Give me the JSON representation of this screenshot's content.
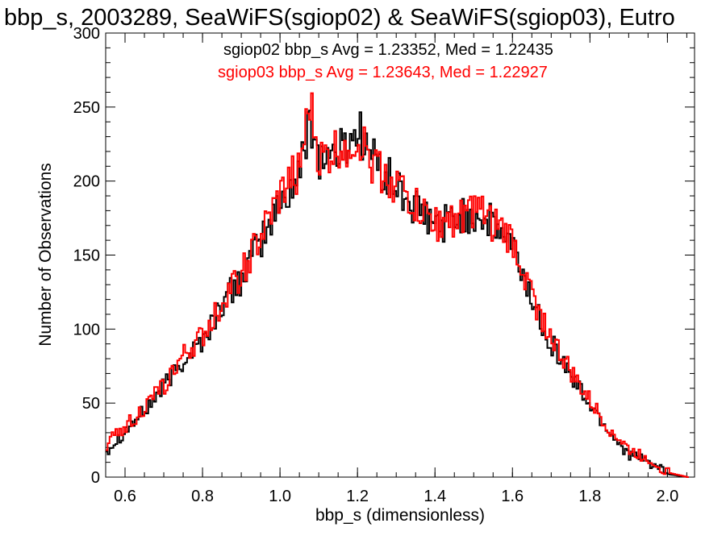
{
  "chart_data": {
    "type": "line",
    "title": "bbp_s, 2003289, SeaWiFS(sgiop02) & SeaWiFS(sgiop03), Eutro",
    "xlabel": "bbp_s (dimensionless)",
    "ylabel": "Number of Observations",
    "xlim": [
      0.55,
      2.07
    ],
    "ylim": [
      0,
      300
    ],
    "xticks": [
      "0.6",
      "0.8",
      "1.0",
      "1.2",
      "1.4",
      "1.6",
      "1.8",
      "2.0"
    ],
    "yticks": [
      "0",
      "50",
      "100",
      "150",
      "200",
      "250",
      "300"
    ],
    "annotations": [
      {
        "text": "sgiop02 bbp_s Avg = 1.23352, Med = 1.22435",
        "color": "#000000"
      },
      {
        "text": "sgiop03 bbp_s Avg = 1.23643, Med = 1.22927",
        "color": "#ff0000"
      }
    ],
    "series": [
      {
        "color": "#000000",
        "x": [
          0.55,
          0.6,
          0.65,
          0.7,
          0.75,
          0.8,
          0.85,
          0.9,
          0.95,
          1.0,
          1.05,
          1.075,
          1.1,
          1.15,
          1.2,
          1.25,
          1.3,
          1.35,
          1.4,
          1.45,
          1.5,
          1.55,
          1.6,
          1.65,
          1.7,
          1.75,
          1.8,
          1.85,
          1.9,
          1.95,
          2.0,
          2.05
        ],
        "values": [
          18,
          32,
          45,
          62,
          80,
          93,
          118,
          135,
          160,
          185,
          205,
          245,
          215,
          220,
          235,
          210,
          195,
          180,
          170,
          175,
          178,
          170,
          155,
          118,
          90,
          68,
          48,
          30,
          15,
          10,
          2,
          0
        ]
      },
      {
        "color": "#ff0000",
        "x": [
          0.55,
          0.6,
          0.65,
          0.7,
          0.75,
          0.8,
          0.85,
          0.9,
          0.95,
          1.0,
          1.05,
          1.075,
          1.1,
          1.15,
          1.2,
          1.25,
          1.3,
          1.35,
          1.4,
          1.45,
          1.5,
          1.55,
          1.6,
          1.65,
          1.7,
          1.75,
          1.8,
          1.85,
          1.9,
          1.95,
          2.0,
          2.05
        ],
        "values": [
          22,
          35,
          47,
          63,
          82,
          95,
          120,
          138,
          162,
          190,
          210,
          251,
          212,
          222,
          228,
          208,
          198,
          182,
          172,
          176,
          180,
          172,
          158,
          122,
          93,
          70,
          50,
          32,
          18,
          12,
          3,
          0
        ]
      }
    ]
  }
}
